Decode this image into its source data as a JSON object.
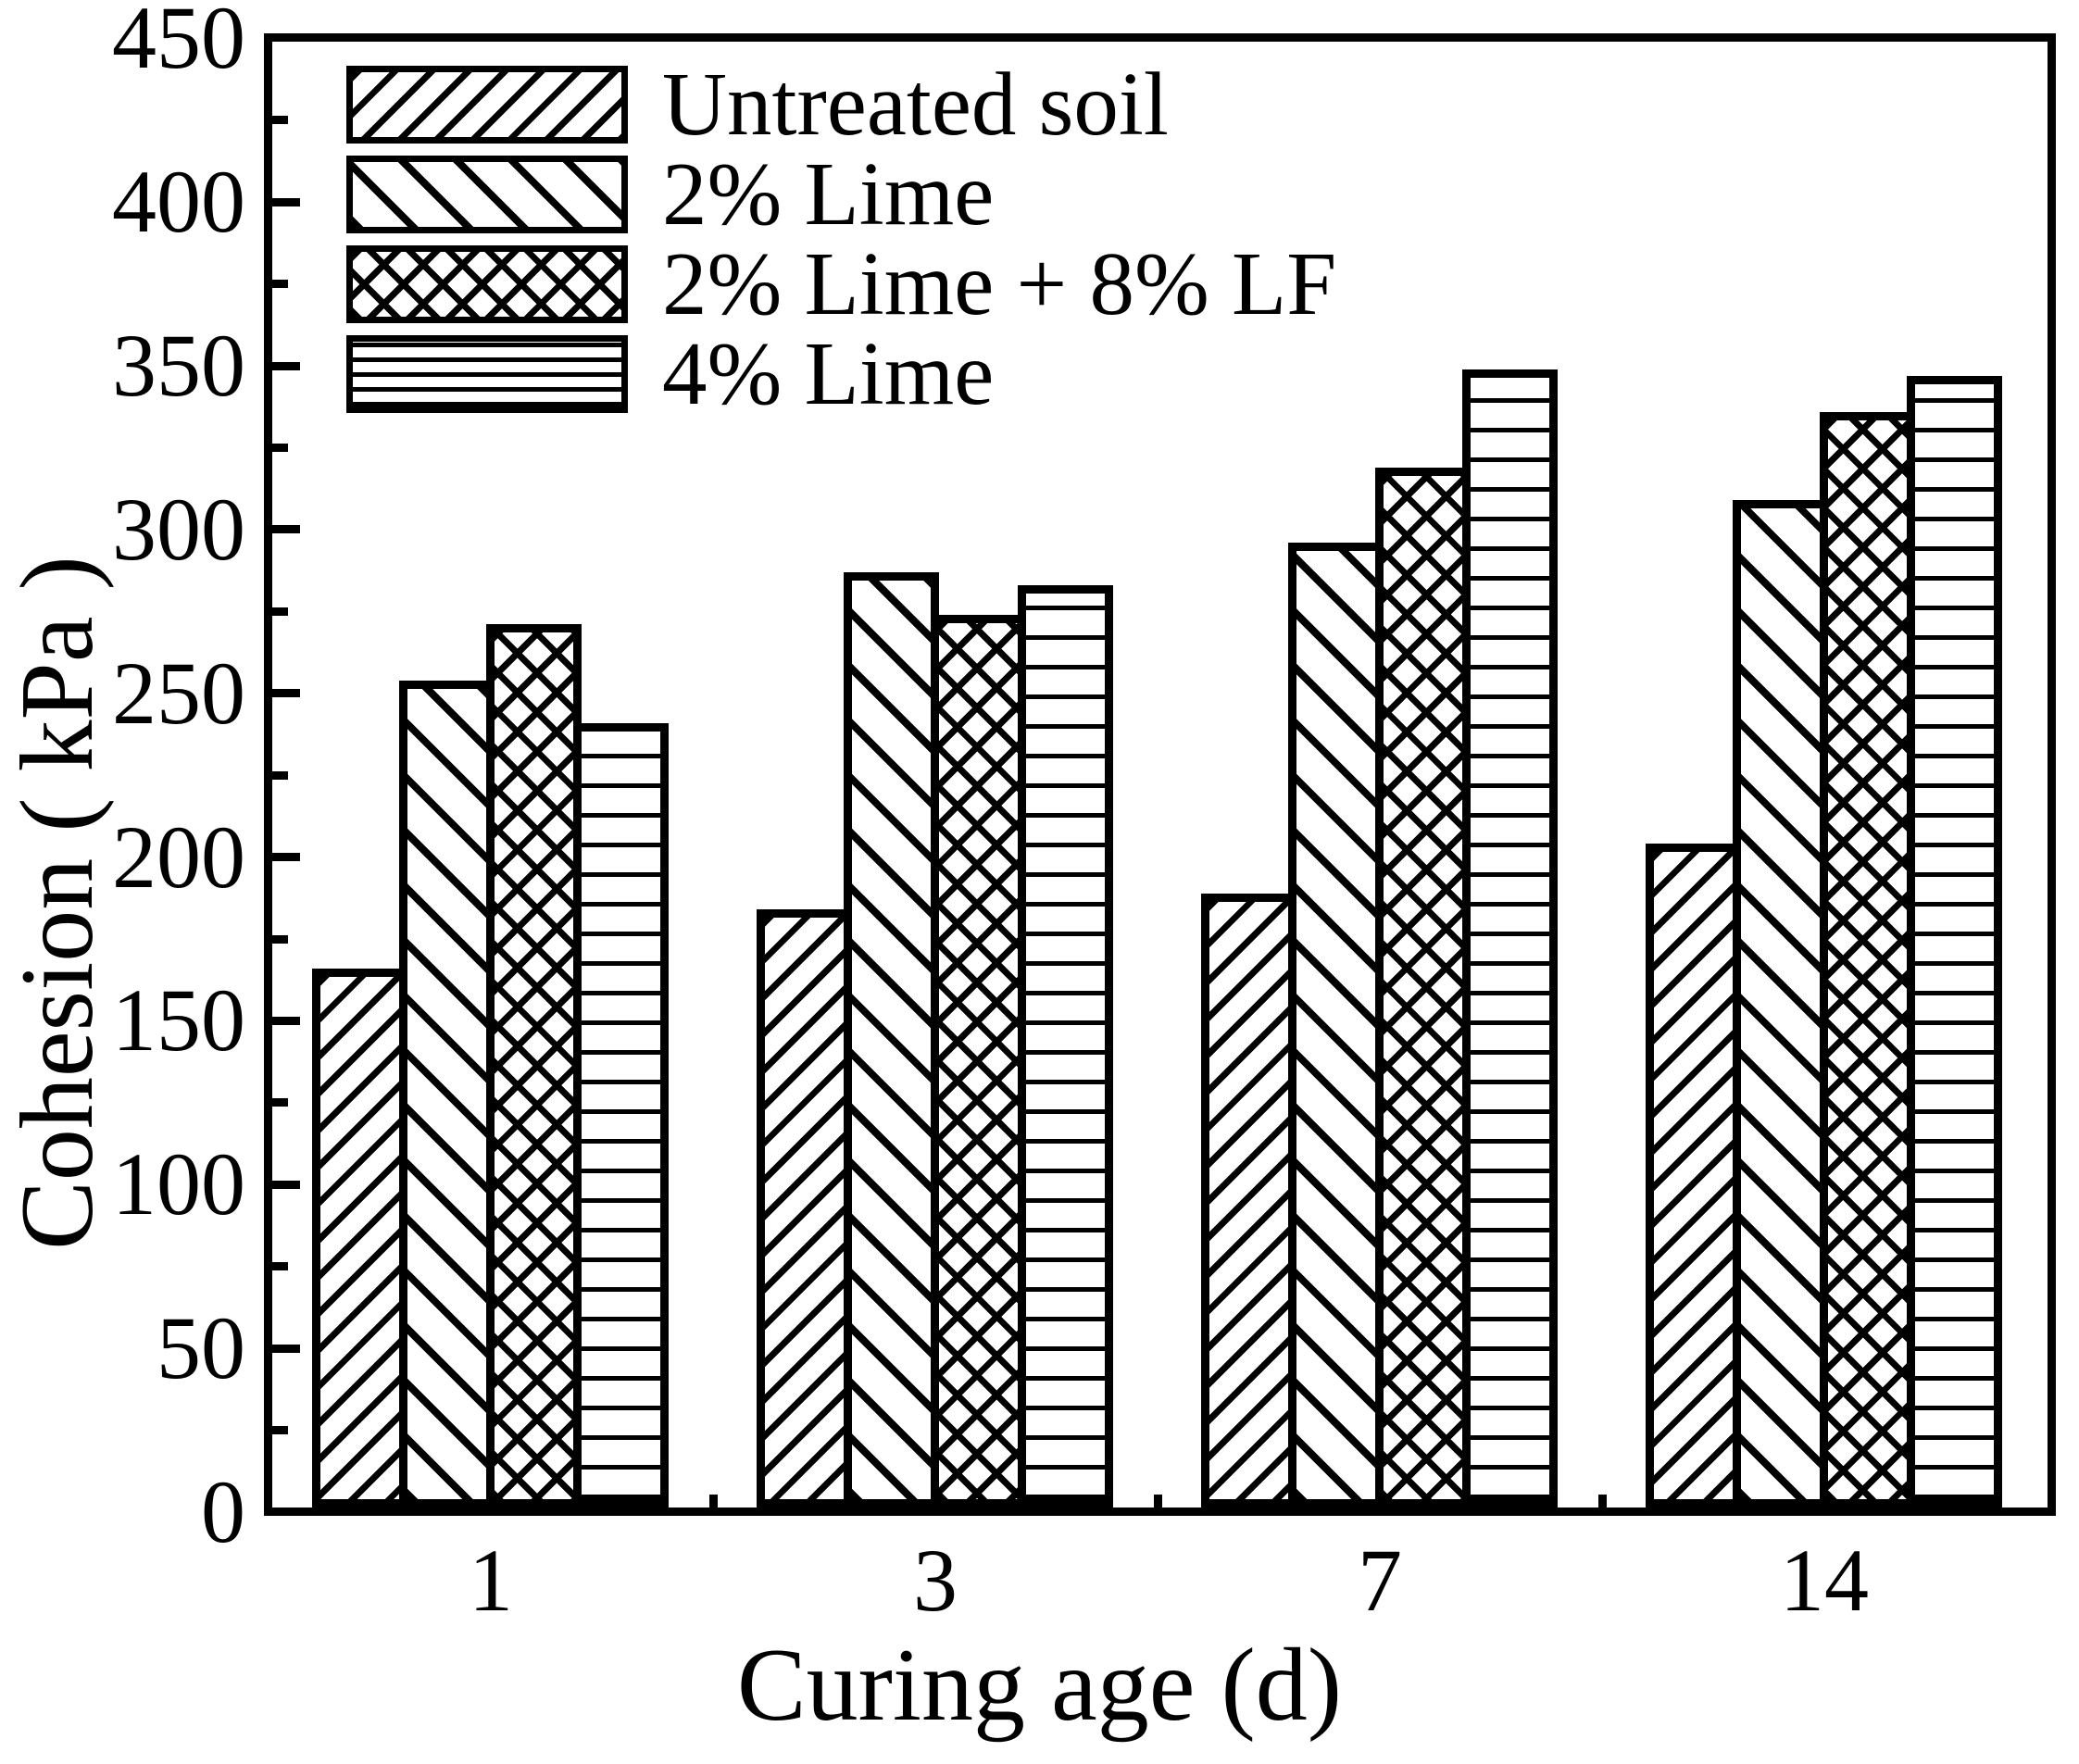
{
  "chart_data": {
    "type": "bar",
    "title": "",
    "xlabel": "Curing age (d)",
    "ylabel": "Cohesion ( kPa )",
    "categories": [
      "1",
      "3",
      "7",
      "14"
    ],
    "series": [
      {
        "name": "Untreated soil",
        "pattern": "diagonal-forward-hatch",
        "values": [
          166,
          184,
          189,
          204
        ]
      },
      {
        "name": "2% Lime",
        "pattern": "diagonal-back-hatch",
        "values": [
          254,
          287,
          296,
          309
        ]
      },
      {
        "name": "2% Lime + 8% LF",
        "pattern": "crosshatch",
        "values": [
          271,
          274,
          319,
          336
        ]
      },
      {
        "name": "4% Lime",
        "pattern": "horizontal-line-hatch",
        "values": [
          241,
          283,
          349,
          347
        ]
      }
    ],
    "ylim": [
      0,
      450
    ],
    "yticks": [
      0,
      50,
      100,
      150,
      200,
      250,
      300,
      350,
      400,
      450
    ],
    "ytick_minor_step": 25,
    "grid": "off",
    "legend_position": "top-left-inside",
    "bar_edge_color": "#000000",
    "bar_fill_color": "#ffffff"
  },
  "colors": {
    "ink": "#000000",
    "background": "#ffffff"
  }
}
